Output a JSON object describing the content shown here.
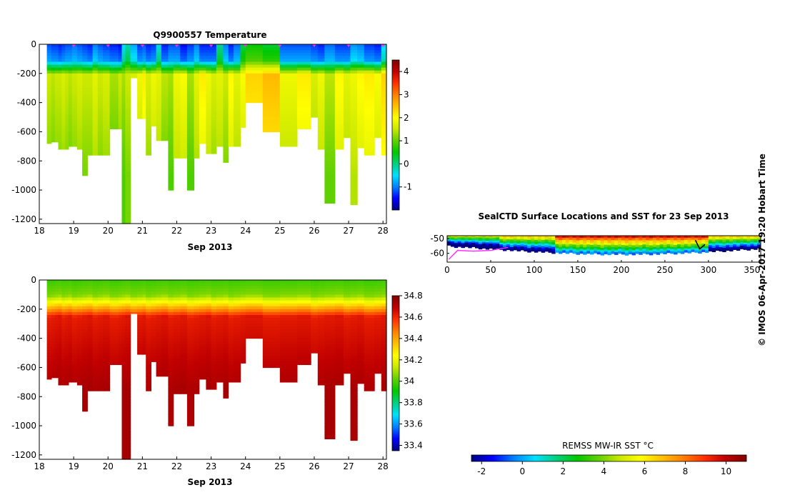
{
  "credit": "© IMOS 06-Apr-2017 19:20 Hobart Time",
  "chart_data": [
    {
      "type": "heatmap",
      "title": "Q9900557  Temperature",
      "xlabel": "Sep 2013",
      "ylabel": "",
      "x_ticks": [
        "18",
        "19",
        "20",
        "21",
        "22",
        "23",
        "24",
        "25",
        "26",
        "27",
        "28"
      ],
      "y_ticks": [
        "0",
        "-200",
        "-400",
        "-600",
        "-800",
        "-1000",
        "-1200"
      ],
      "xlim": [
        18,
        28.1
      ],
      "ylim": [
        -1230,
        0
      ],
      "colorbar": {
        "ticks": [
          "4",
          "3",
          "2",
          "1",
          "0",
          "-1"
        ],
        "min": -2.0,
        "max": 4.5
      },
      "profile_markers_days": [
        19,
        20,
        21,
        22,
        23,
        24,
        25,
        26,
        27,
        28
      ],
      "profiles_start_day": [
        18.22,
        18.35,
        18.45,
        18.55,
        18.65,
        18.75,
        18.85,
        18.95,
        19.1,
        19.25,
        19.4,
        19.55,
        19.7,
        19.85,
        20.05,
        20.3,
        20.4,
        20.5,
        20.65,
        20.85,
        21.0,
        21.1,
        21.25,
        21.4,
        21.55,
        21.75,
        21.9,
        22.1,
        22.3,
        22.5,
        22.65,
        22.85,
        23.0,
        23.15,
        23.35,
        23.5,
        23.65,
        23.85,
        24.0,
        24.5,
        25.0,
        25.5,
        25.9,
        26.1,
        26.3,
        26.6,
        26.85,
        27.05,
        27.25,
        27.45,
        27.75,
        27.95
      ],
      "profiles_max_depth_m": [
        680,
        670,
        670,
        720,
        720,
        720,
        700,
        700,
        720,
        900,
        760,
        760,
        760,
        760,
        580,
        580,
        1230,
        1230,
        230,
        510,
        510,
        760,
        560,
        660,
        660,
        1000,
        780,
        780,
        1000,
        780,
        680,
        750,
        750,
        700,
        810,
        700,
        700,
        570,
        400,
        600,
        700,
        580,
        500,
        720,
        1090,
        720,
        640,
        1100,
        710,
        760,
        640,
        760
      ],
      "profiles_min_temp_c": [
        -1.2,
        -1.3,
        -1.3,
        -1.4,
        -1.3,
        -1.2,
        -1.2,
        -1.1,
        -1.2,
        -1.3,
        -1.4,
        -1.0,
        -1.2,
        -1.3,
        -1.4,
        -1.5,
        -0.5,
        -0.2,
        -0.8,
        -1.3,
        -1.2,
        -1.4,
        -1.3,
        -0.4,
        -1.4,
        -1.2,
        -1.2,
        -1.5,
        -1.3,
        -1.0,
        -1.4,
        -1.4,
        -1.4,
        -0.1,
        -1.0,
        -1.4,
        -1.1,
        0.2,
        0.5,
        0.3,
        -1.2,
        -1.2,
        -1.3,
        -1.4,
        -1.1,
        -1.3,
        -1.3,
        -0.9,
        -1.0,
        -1.3,
        -1.4,
        -0.6
      ],
      "profiles_deep_temp_c": [
        1.3,
        1.2,
        1.3,
        1.3,
        1.4,
        1.3,
        1.2,
        1.3,
        1.4,
        1.3,
        1.3,
        1.5,
        1.3,
        1.4,
        1.1,
        1.3,
        1.1,
        1.3,
        1.4,
        1.6,
        1.9,
        1.4,
        1.6,
        1.5,
        1.2,
        1.1,
        1.6,
        1.7,
        1.1,
        1.5,
        1.9,
        1.6,
        1.4,
        1.5,
        1.3,
        1.8,
        1.5,
        1.7,
        2.1,
        2.3,
        1.6,
        1.9,
        1.4,
        1.6,
        1.2,
        1.8,
        1.5,
        1.6,
        1.8,
        1.9,
        1.7,
        2.1
      ]
    },
    {
      "type": "heatmap",
      "title": "",
      "xlabel": "Sep 2013",
      "ylabel": "",
      "x_ticks": [
        "18",
        "19",
        "20",
        "21",
        "22",
        "23",
        "24",
        "25",
        "26",
        "27",
        "28"
      ],
      "y_ticks": [
        "0",
        "-200",
        "-400",
        "-600",
        "-800",
        "-1000",
        "-1200"
      ],
      "xlim": [
        18,
        28.1
      ],
      "ylim": [
        -1230,
        0
      ],
      "colorbar": {
        "ticks": [
          "34.8",
          "34.6",
          "34.4",
          "34.2",
          "34",
          "33.8",
          "33.6",
          "33.4"
        ],
        "min": 33.35,
        "max": 34.8
      },
      "surface_salinity_psu": 34.05,
      "deep_salinity_psu": 34.72
    },
    {
      "type": "map",
      "title": "SealCTD Surface Locations and SST for 23 Sep 2013",
      "x_ticks": [
        "0",
        "50",
        "100",
        "150",
        "200",
        "250",
        "300",
        "350"
      ],
      "y_ticks": [
        "-50",
        "-60"
      ],
      "xlim": [
        0,
        360
      ],
      "ylim": [
        -66,
        -48
      ],
      "track_color": "#ff33ff"
    },
    {
      "type": "colorbar",
      "title": "REMSS MW-IR SST °C",
      "ticks": [
        "-2",
        "0",
        "2",
        "4",
        "6",
        "8",
        "10"
      ],
      "min": -2.5,
      "max": 11
    }
  ],
  "colormap_stops": [
    "#00007f",
    "#0000ff",
    "#0080ff",
    "#00e0ff",
    "#00d080",
    "#00c800",
    "#60d000",
    "#c8e800",
    "#ffff00",
    "#ffc000",
    "#ff8000",
    "#ff3000",
    "#c00000",
    "#800000"
  ]
}
